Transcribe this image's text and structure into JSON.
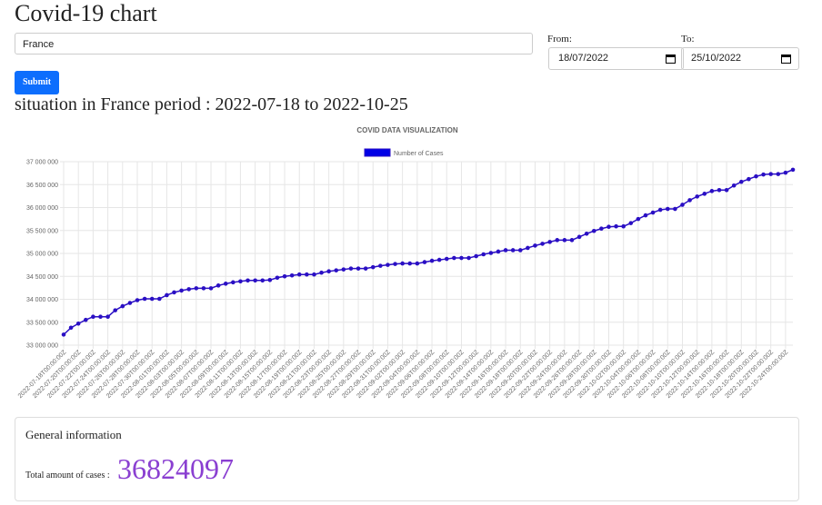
{
  "header": {
    "title": "Covid-19 chart"
  },
  "form": {
    "country": "France",
    "from_label": "From:",
    "from_date": "18/07/2022",
    "to_label": "To:",
    "to_date": "25/10/2022",
    "submit": "Submit"
  },
  "situation": "situation in France period : 2022-07-18 to 2022-10-25",
  "chart_data": {
    "type": "line",
    "title": "COVID DATA VISUALIZATION",
    "categories": [
      "2022-07-18T00:00:00Z",
      null,
      "2022-07-20T00:00:00Z",
      null,
      "2022-07-22T00:00:00Z",
      null,
      "2022-07-24T00:00:00Z",
      null,
      "2022-07-26T00:00:00Z",
      null,
      "2022-07-28T00:00:00Z",
      null,
      "2022-07-30T00:00:00Z",
      null,
      "2022-08-01T00:00:00Z",
      null,
      "2022-08-03T00:00:00Z",
      null,
      "2022-08-05T00:00:00Z",
      null,
      "2022-08-07T00:00:00Z",
      null,
      "2022-08-09T00:00:00Z",
      null,
      "2022-08-11T00:00:00Z",
      null,
      "2022-08-13T00:00:00Z",
      null,
      "2022-08-15T00:00:00Z",
      null,
      "2022-08-17T00:00:00Z",
      null,
      "2022-08-19T00:00:00Z",
      null,
      "2022-08-21T00:00:00Z",
      null,
      "2022-08-23T00:00:00Z",
      null,
      "2022-08-25T00:00:00Z",
      null,
      "2022-08-27T00:00:00Z",
      null,
      "2022-08-29T00:00:00Z",
      null,
      "2022-08-31T00:00:00Z",
      null,
      "2022-09-02T00:00:00Z",
      null,
      "2022-09-04T00:00:00Z",
      null,
      "2022-09-06T00:00:00Z",
      null,
      "2022-09-08T00:00:00Z",
      null,
      "2022-09-10T00:00:00Z",
      null,
      "2022-09-12T00:00:00Z",
      null,
      "2022-09-14T00:00:00Z",
      null,
      "2022-09-16T00:00:00Z",
      null,
      "2022-09-18T00:00:00Z",
      null,
      "2022-09-20T00:00:00Z",
      null,
      "2022-09-22T00:00:00Z",
      null,
      "2022-09-24T00:00:00Z",
      null,
      "2022-09-26T00:00:00Z",
      null,
      "2022-09-28T00:00:00Z",
      null,
      "2022-09-30T00:00:00Z",
      null,
      "2022-10-02T00:00:00Z",
      null,
      "2022-10-04T00:00:00Z",
      null,
      "2022-10-06T00:00:00Z",
      null,
      "2022-10-08T00:00:00Z",
      null,
      "2022-10-10T00:00:00Z",
      null,
      "2022-10-12T00:00:00Z",
      null,
      "2022-10-14T00:00:00Z",
      null,
      "2022-10-16T00:00:00Z",
      null,
      "2022-10-18T00:00:00Z",
      null,
      "2022-10-20T00:00:00Z",
      null,
      "2022-10-22T00:00:00Z",
      null,
      "2022-10-24T00:00:00Z",
      null
    ],
    "series": [
      {
        "name": "Number of Cases",
        "color": "#2a0fc4",
        "values": [
          33230000,
          33380000,
          33470000,
          33550000,
          33620000,
          33620000,
          33620000,
          33760000,
          33850000,
          33920000,
          33980000,
          34010000,
          34010000,
          34010000,
          34090000,
          34150000,
          34190000,
          34220000,
          34240000,
          34240000,
          34240000,
          34300000,
          34340000,
          34370000,
          34390000,
          34410000,
          34410000,
          34410000,
          34420000,
          34470000,
          34500000,
          34520000,
          34540000,
          34540000,
          34540000,
          34580000,
          34610000,
          34630000,
          34650000,
          34670000,
          34670000,
          34670000,
          34700000,
          34730000,
          34750000,
          34770000,
          34780000,
          34780000,
          34780000,
          34810000,
          34840000,
          34860000,
          34880000,
          34900000,
          34900000,
          34900000,
          34940000,
          34980000,
          35010000,
          35040000,
          35070000,
          35070000,
          35070000,
          35120000,
          35170000,
          35210000,
          35250000,
          35290000,
          35290000,
          35290000,
          35360000,
          35430000,
          35490000,
          35540000,
          35580000,
          35590000,
          35590000,
          35660000,
          35750000,
          35830000,
          35890000,
          35950000,
          35970000,
          35970000,
          36060000,
          36160000,
          36240000,
          36300000,
          36360000,
          36380000,
          36380000,
          36480000,
          36560000,
          36620000,
          36680000,
          36720000,
          36730000,
          36730000,
          36760000,
          36824097
        ]
      }
    ],
    "ylim": [
      33000000,
      37000000
    ],
    "yticks": [
      {
        "value": 33000000,
        "label": "33 000 000"
      },
      {
        "value": 33500000,
        "label": "33 500 000"
      },
      {
        "value": 34000000,
        "label": "34 000 000"
      },
      {
        "value": 34500000,
        "label": "34 500 000"
      },
      {
        "value": 35000000,
        "label": "35 000 000"
      },
      {
        "value": 35500000,
        "label": "35 500 000"
      },
      {
        "value": 36000000,
        "label": "36 000 000"
      },
      {
        "value": 36500000,
        "label": "36 500 000"
      },
      {
        "value": 37000000,
        "label": "37 000 000"
      }
    ],
    "grid": true,
    "legend": "top"
  },
  "info": {
    "title": "General information",
    "total_label": "Total amount of cases :",
    "total": 36824097
  }
}
